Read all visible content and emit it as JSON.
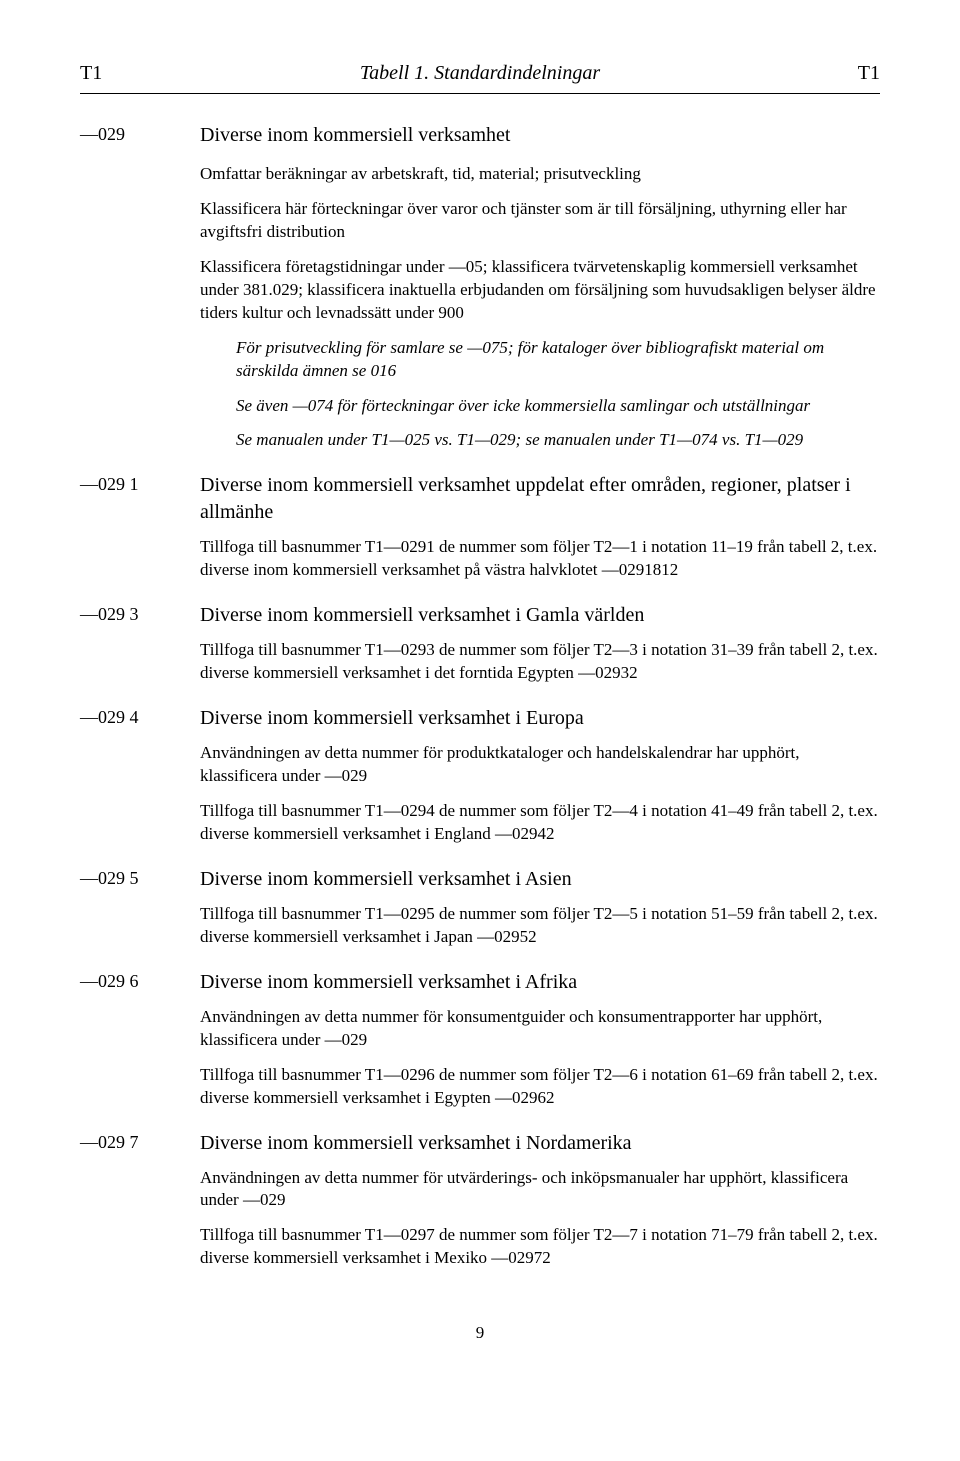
{
  "header": {
    "left": "T1",
    "center": "Tabell 1. Standardindelningar",
    "right": "T1"
  },
  "entries": [
    {
      "code": "—029",
      "title": "Diverse inom kommersiell verksamhet",
      "paras": [
        {
          "cls": "body-para",
          "text": "Omfattar beräkningar av arbetskraft, tid, material; prisutveckling"
        },
        {
          "cls": "body-para",
          "text": "Klassificera här förteckningar över varor och tjänster som är till försäljning, uthyrning eller har avgiftsfri distribution"
        },
        {
          "cls": "body-para",
          "text": "Klassificera företagstidningar under —05; klassificera tvärvetenskaplig kommersiell verksamhet under 381.029; klassificera inaktuella erbjudanden om försäljning som huvudsakligen belyser äldre tiders kultur och levnadssätt under 900"
        },
        {
          "cls": "italic-para",
          "text": "För prisutveckling för samlare se —075; för kataloger över bibliografiskt material om särskilda ämnen se 016"
        },
        {
          "cls": "italic-para",
          "text": "Se även —074 för förteckningar över icke kommersiella samlingar och utställningar"
        },
        {
          "cls": "italic-para",
          "text": "Se manualen under T1—025 vs. T1—029; se manualen under T1—074 vs. T1—029"
        }
      ]
    },
    {
      "code": "—029 1",
      "title": "Diverse inom kommersiell verksamhet uppdelat efter områden, regioner, platser i allmänhe",
      "paras": [
        {
          "cls": "note-para",
          "text": "Tillfoga till basnummer T1—0291 de nummer som följer T2—1 i notation 11–19 från tabell 2, t.ex. diverse inom kommersiell verksamhet på västra halvklotet —0291812"
        }
      ]
    },
    {
      "code": "—029 3",
      "title": "Diverse inom kommersiell verksamhet i Gamla världen",
      "paras": [
        {
          "cls": "note-para",
          "text": "Tillfoga till basnummer T1—0293 de nummer som följer T2—3 i notation 31–39 från tabell 2, t.ex. diverse kommersiell verksamhet i det forntida Egypten —02932"
        }
      ]
    },
    {
      "code": "—029 4",
      "title": "Diverse inom kommersiell verksamhet i Europa",
      "paras": [
        {
          "cls": "note-para",
          "text": "Användningen av detta nummer för produktkataloger och handelskalendrar har upphört, klassificera under —029"
        },
        {
          "cls": "note-para",
          "text": "Tillfoga till basnummer T1—0294 de nummer som följer T2—4 i notation 41–49 från tabell 2, t.ex. diverse kommersiell verksamhet i England —02942"
        }
      ]
    },
    {
      "code": "—029 5",
      "title": "Diverse inom kommersiell verksamhet i Asien",
      "paras": [
        {
          "cls": "note-para",
          "text": "Tillfoga till basnummer T1—0295 de nummer som följer T2—5 i notation 51–59 från tabell 2, t.ex. diverse kommersiell verksamhet i Japan —02952"
        }
      ]
    },
    {
      "code": "—029 6",
      "title": "Diverse inom kommersiell verksamhet i Afrika",
      "paras": [
        {
          "cls": "note-para",
          "text": "Användningen av detta nummer för konsumentguider och konsumentrapporter har upphört, klassificera under —029"
        },
        {
          "cls": "note-para",
          "text": "Tillfoga till basnummer T1—0296 de nummer som följer T2—6 i notation 61–69 från tabell 2, t.ex. diverse kommersiell verksamhet i Egypten —02962"
        }
      ]
    },
    {
      "code": "—029 7",
      "title": "Diverse inom kommersiell verksamhet i Nordamerika",
      "paras": [
        {
          "cls": "note-para",
          "text": "Användningen av detta nummer för utvärderings- och inköpsmanualer har upphört, klassificera under —029"
        },
        {
          "cls": "note-para",
          "text": "Tillfoga till basnummer T1—0297 de nummer som följer T2—7 i notation 71–79 från tabell 2, t.ex. diverse kommersiell verksamhet i Mexiko —02972"
        }
      ]
    }
  ],
  "page_number": "9"
}
